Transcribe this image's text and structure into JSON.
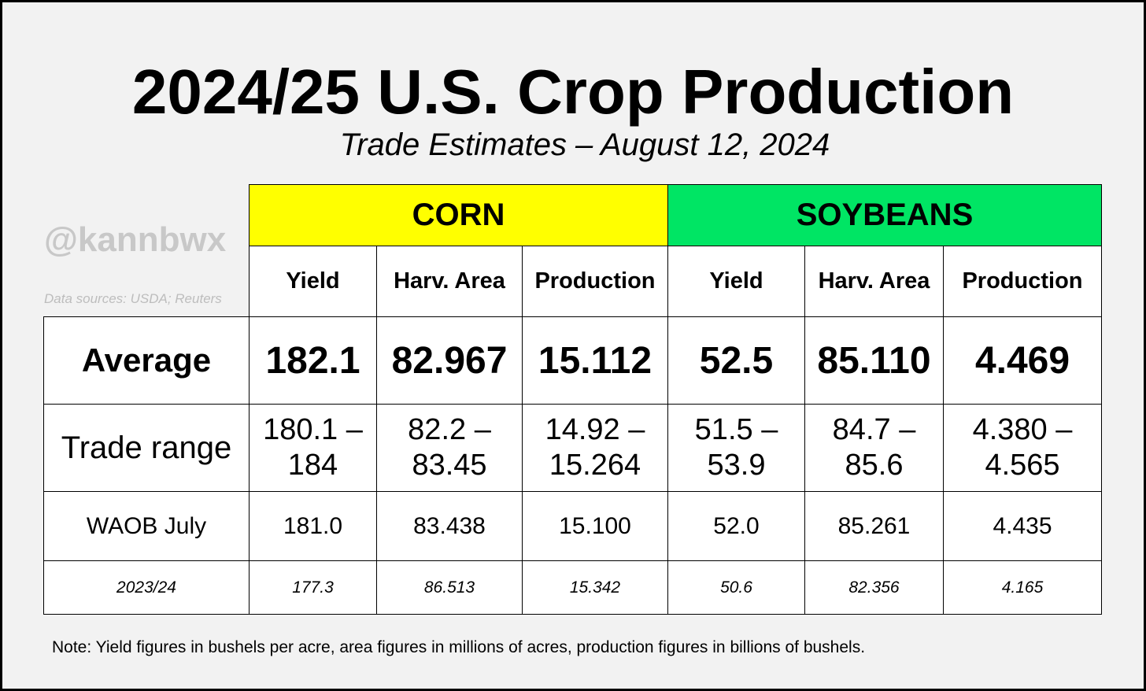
{
  "title": "2024/25 U.S. Crop Production",
  "subtitle": "Trade Estimates – August 12, 2024",
  "watermark": "@kannbwx",
  "sources": "Data sources: USDA; Reuters",
  "note": "Note: Yield figures in bushels per acre, area figures in millions of acres, production figures in billions of bushels.",
  "colors": {
    "corn": "#ffff00",
    "soybeans": "#00e564"
  },
  "groups": {
    "corn": "CORN",
    "soybeans": "SOYBEANS"
  },
  "columns": [
    "Yield",
    "Harv. Area",
    "Production",
    "Yield",
    "Harv. Area",
    "Production"
  ],
  "rows": {
    "average": {
      "label": "Average",
      "values": [
        "182.1",
        "82.967",
        "15.112",
        "52.5",
        "85.110",
        "4.469"
      ]
    },
    "range": {
      "label": "Trade range",
      "values": [
        "180.1 –\n184",
        "82.2 –\n83.45",
        "14.92 –\n15.264",
        "51.5 –\n53.9",
        "84.7 –\n85.6",
        "4.380 –\n4.565"
      ]
    },
    "waob": {
      "label": "WAOB July",
      "values": [
        "181.0",
        "83.438",
        "15.100",
        "52.0",
        "85.261",
        "4.435"
      ]
    },
    "prior": {
      "label": "2023/24",
      "values": [
        "177.3",
        "86.513",
        "15.342",
        "50.6",
        "82.356",
        "4.165"
      ]
    }
  }
}
